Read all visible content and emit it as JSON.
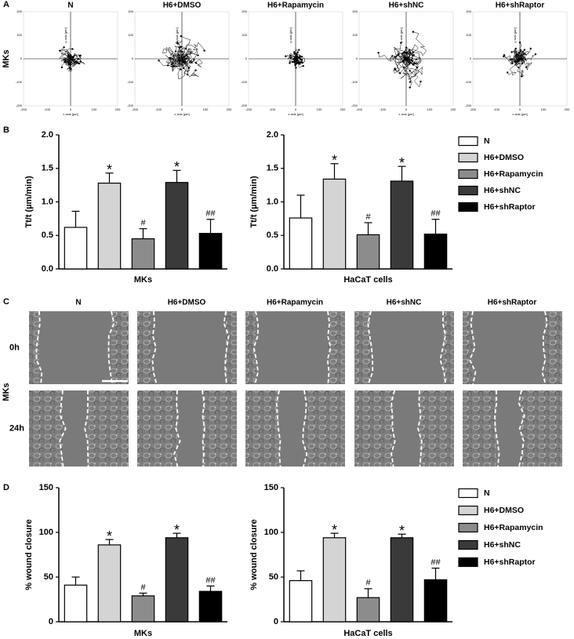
{
  "panel_letters": [
    "A",
    "B",
    "C",
    "D"
  ],
  "trajectories": {
    "row_label": "MKs",
    "titles": [
      "N",
      "H6+DMSO",
      "H6+Rapamycin",
      "H6+shNC",
      "H6+shRaptor"
    ],
    "ticks": [
      -200,
      -100,
      0,
      100,
      200
    ],
    "xlabel": "x axis [µm]",
    "ylabel": "y axis [µm]"
  },
  "chart_data": [
    {
      "type": "bar",
      "categories": [
        "N",
        "H6+DMSO",
        "H6+Rapamycin",
        "H6+shNC",
        "H6+shRaptor"
      ],
      "colors": [
        "#ffffff",
        "#d4d4d4",
        "#8c8c8c",
        "#3a3a3a",
        "#000000"
      ],
      "ylabel": "Tt/t (µm/min)",
      "ylim": [
        0,
        2
      ],
      "yticks": [
        {
          "value": 0,
          "label": "0.0"
        },
        {
          "value": 0.5,
          "label": "0.5"
        },
        {
          "value": 1,
          "label": "1.0"
        },
        {
          "value": 1.5,
          "label": "1.5"
        },
        {
          "value": 2,
          "label": "2.0"
        }
      ],
      "groups": [
        {
          "xlabel": "MKs",
          "values": [
            0.62,
            1.28,
            0.45,
            1.29,
            0.53
          ],
          "errors": [
            0.24,
            0.15,
            0.15,
            0.18,
            0.21
          ],
          "annotations": [
            null,
            "*",
            "#",
            "*",
            "##"
          ]
        },
        {
          "xlabel": "HaCaT cells",
          "values": [
            0.76,
            1.34,
            0.51,
            1.31,
            0.52
          ],
          "errors": [
            0.34,
            0.23,
            0.18,
            0.22,
            0.22
          ],
          "annotations": [
            null,
            "*",
            "#",
            "*",
            "##"
          ]
        }
      ]
    },
    {
      "type": "bar",
      "categories": [
        "N",
        "H6+DMSO",
        "H6+Rapamycin",
        "H6+shNC",
        "H6+shRaptor"
      ],
      "colors": [
        "#ffffff",
        "#d4d4d4",
        "#8c8c8c",
        "#3a3a3a",
        "#000000"
      ],
      "ylabel": "% wound closure",
      "ylim": [
        0,
        150
      ],
      "yticks": [
        0,
        50,
        100,
        150
      ],
      "groups": [
        {
          "xlabel": "MKs",
          "values": [
            41,
            86,
            29,
            94,
            34
          ],
          "errors": [
            9,
            6,
            3,
            5,
            6
          ],
          "annotations": [
            null,
            "*",
            "#",
            "*",
            "##"
          ]
        },
        {
          "xlabel": "HaCaT cells",
          "values": [
            46,
            94,
            27,
            94,
            47
          ],
          "errors": [
            11,
            5,
            10,
            4,
            13
          ],
          "annotations": [
            null,
            "*",
            "#",
            "*",
            "##"
          ]
        }
      ]
    }
  ],
  "wound_images": {
    "titles": [
      "N",
      "H6+DMSO",
      "H6+Rapamycin",
      "H6+shNC",
      "H6+shRaptor"
    ],
    "row_labels": [
      "0h",
      "24h"
    ],
    "side_label": "MKs"
  }
}
